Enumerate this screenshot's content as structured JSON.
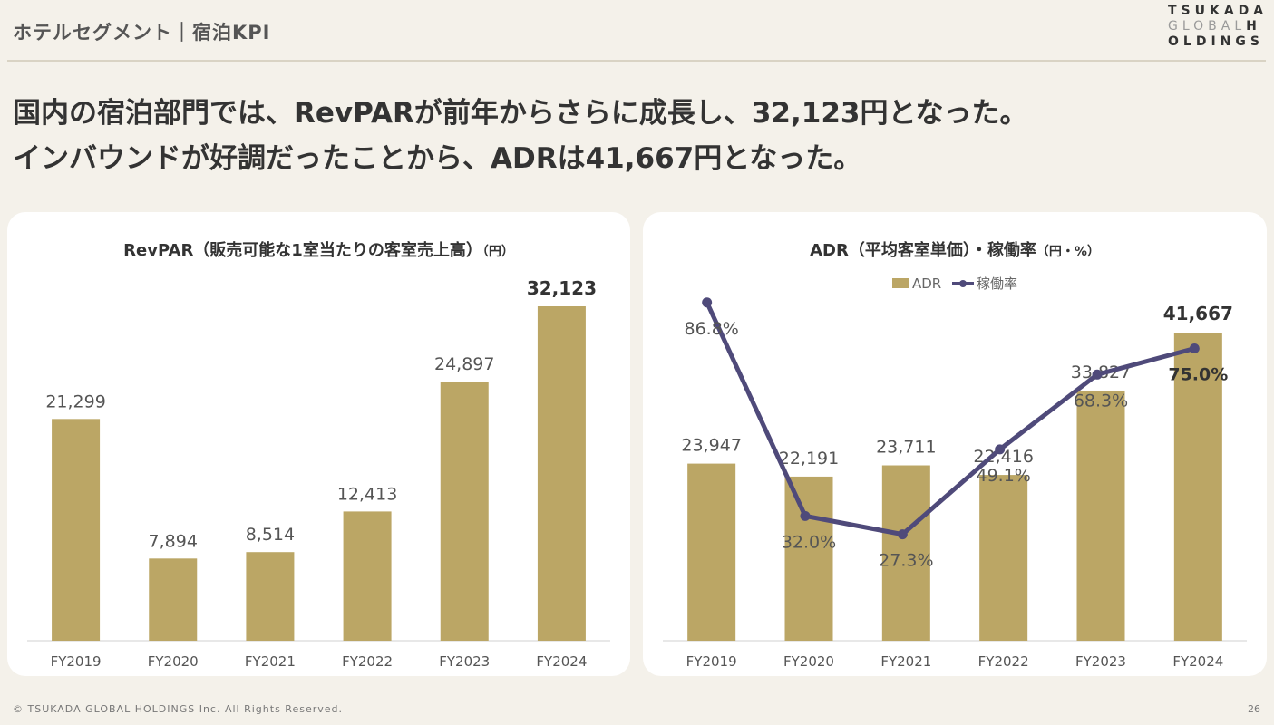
{
  "header": {
    "title": "ホテルセグメント｜宿泊KPI",
    "logo": {
      "line1": "TSUKADA",
      "line2a": "GLOBAL",
      "line2b": "H",
      "line3": "OLDINGS"
    }
  },
  "headline": {
    "line1": "国内の宿泊部門では、RevPARが前年からさらに成長し、32,123円となった。",
    "line2": "インバウンドが好調だったことから、ADRは41,667円となった。"
  },
  "colors": {
    "bar": "#bba665",
    "line": "#4f4a7a",
    "axis": "#d0d0d0"
  },
  "chart_data": [
    {
      "type": "bar",
      "title": "RevPAR（販売可能な1室当たりの客室売上高）",
      "unit": "（円）",
      "categories": [
        "FY2019",
        "FY2020",
        "FY2021",
        "FY2022",
        "FY2023",
        "FY2024"
      ],
      "values": [
        21299,
        7894,
        8514,
        12413,
        24897,
        32123
      ],
      "labels": [
        "21,299",
        "7,894",
        "8,514",
        "12,413",
        "24,897",
        "32,123"
      ],
      "highlight_last": true
    },
    {
      "type": "bar+line",
      "title": "ADR（平均客室単価）・稼働率",
      "unit": "（円・%）",
      "categories": [
        "FY2019",
        "FY2020",
        "FY2021",
        "FY2022",
        "FY2023",
        "FY2024"
      ],
      "legend": [
        "ADR",
        "稼働率"
      ],
      "series": [
        {
          "name": "ADR",
          "type": "bar",
          "values": [
            23947,
            22191,
            23711,
            22416,
            33827,
            41667
          ],
          "labels": [
            "23,947",
            "22,191",
            "23,711",
            "22,416",
            "33,827",
            "41,667"
          ]
        },
        {
          "name": "稼働率",
          "type": "line",
          "values": [
            86.8,
            32.0,
            27.3,
            49.1,
            68.3,
            75.0
          ],
          "labels": [
            "86.8%",
            "32.0%",
            "27.3%",
            "49.1%",
            "68.3%",
            "75.0%"
          ]
        }
      ],
      "highlight_last": true
    }
  ],
  "footer": {
    "copyright": "© TSUKADA GLOBAL HOLDINGS Inc. All Rights Reserved.",
    "page": "26"
  }
}
